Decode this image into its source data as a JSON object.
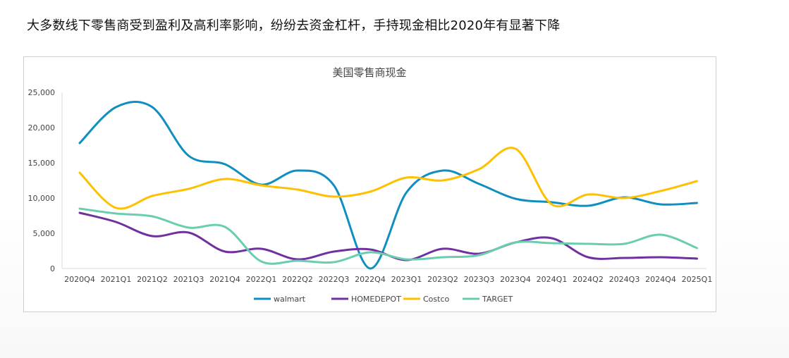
{
  "headline": "大多数线下零售商受到盈利及高利率影响，纷纷去资金杠杆，手持现金相比2020年有显著下降",
  "chart_data": {
    "type": "line",
    "title": "美国零售商现金",
    "xlabel": "",
    "ylabel": "",
    "ylim": [
      0,
      25000
    ],
    "yticks": [
      "0",
      "5,000",
      "10,000",
      "15,000",
      "20,000",
      "25,000"
    ],
    "ytick_values": [
      0,
      5000,
      10000,
      15000,
      20000,
      25000
    ],
    "grid": false,
    "smooth": true,
    "legend": "bottom",
    "categories": [
      "2020Q4",
      "2021Q1",
      "2021Q2",
      "2021Q3",
      "2021Q4",
      "2022Q1",
      "2022Q2",
      "2022Q3",
      "2022Q4",
      "2023Q1",
      "2023Q2",
      "2023Q3",
      "2023Q4",
      "2024Q1",
      "2024Q2",
      "2024Q3",
      "2024Q4",
      "2025Q1"
    ],
    "series": [
      {
        "name": "walmart",
        "color": "#0e8fbf",
        "values": [
          17800,
          22900,
          22900,
          16000,
          14800,
          11900,
          13900,
          11800,
          0,
          10800,
          13900,
          12000,
          9900,
          9400,
          8900,
          10100,
          9100,
          9300
        ]
      },
      {
        "name": "HOMEDEPOT",
        "color": "#7030a0",
        "values": [
          7900,
          6600,
          4600,
          5100,
          2400,
          2800,
          1300,
          2400,
          2700,
          1200,
          2800,
          2100,
          3700,
          4300,
          1600,
          1500,
          1600,
          1400
        ]
      },
      {
        "name": "Costco",
        "color": "#ffc000",
        "values": [
          13600,
          8600,
          10300,
          11300,
          12700,
          11800,
          11200,
          10200,
          10900,
          12900,
          12500,
          14100,
          17000,
          9100,
          10500,
          10000,
          11000,
          12400
        ]
      },
      {
        "name": "TARGET",
        "color": "#6bcdb0",
        "values": [
          8500,
          7800,
          7400,
          5800,
          5900,
          1000,
          1100,
          900,
          2300,
          1300,
          1600,
          1900,
          3700,
          3600,
          3500,
          3500,
          4800,
          2900
        ]
      }
    ]
  }
}
